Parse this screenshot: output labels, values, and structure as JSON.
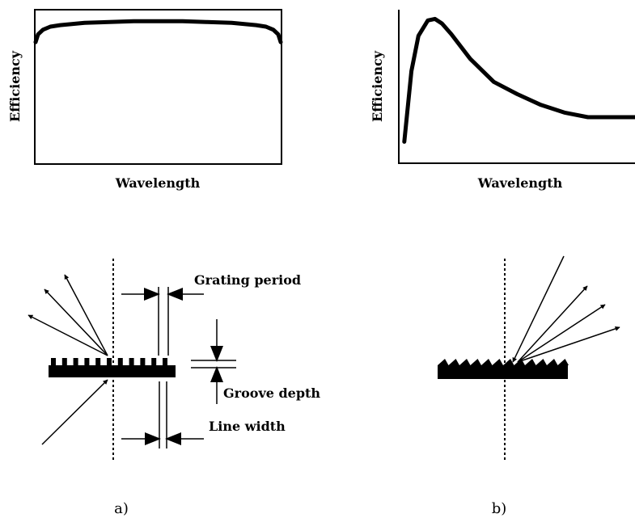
{
  "chart_data": [
    {
      "type": "line",
      "xlabel": "Wavelength",
      "ylabel": "Efficiency",
      "x": [
        0,
        0.01,
        0.03,
        0.06,
        0.1,
        0.2,
        0.3,
        0.4,
        0.5,
        0.6,
        0.7,
        0.8,
        0.9,
        0.94,
        0.97,
        0.99,
        1.0
      ],
      "values": [
        0.79,
        0.84,
        0.87,
        0.89,
        0.9,
        0.915,
        0.92,
        0.925,
        0.925,
        0.925,
        0.92,
        0.915,
        0.9,
        0.89,
        0.87,
        0.84,
        0.79
      ]
    },
    {
      "type": "line",
      "xlabel": "Wavelength",
      "ylabel": "Efficiency",
      "x": [
        0.02,
        0.05,
        0.08,
        0.12,
        0.15,
        0.18,
        0.22,
        0.3,
        0.4,
        0.5,
        0.6,
        0.7,
        0.8,
        0.9,
        1.0
      ],
      "values": [
        0.14,
        0.6,
        0.83,
        0.93,
        0.94,
        0.91,
        0.84,
        0.68,
        0.53,
        0.45,
        0.38,
        0.33,
        0.3,
        0.3,
        0.3
      ]
    }
  ],
  "diagram_a": {
    "grating_period": "Grating period",
    "groove_depth": "Groove depth",
    "line_width": "Line width",
    "caption": "a)"
  },
  "diagram_b": {
    "caption": "b)"
  }
}
